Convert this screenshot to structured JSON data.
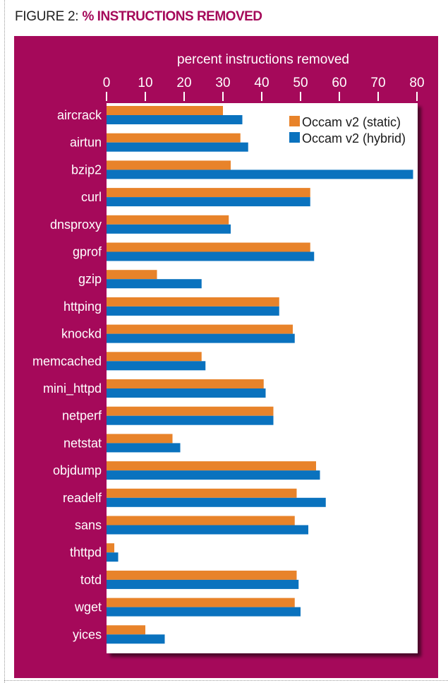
{
  "figure": {
    "label": "FIGURE 2:",
    "title": "% INSTRUCTIONS REMOVED"
  },
  "colors": {
    "panel": "#a5095a",
    "static": "#e8832a",
    "hybrid": "#0a72be"
  },
  "chart_data": {
    "type": "bar",
    "orientation": "horizontal",
    "xlabel": "percent instructions removed",
    "xlim": [
      0,
      80
    ],
    "xticks": [
      0,
      10,
      20,
      30,
      40,
      50,
      60,
      70,
      80
    ],
    "legend_position": "top-right",
    "grid": false,
    "categories": [
      "aircrack",
      "airtun",
      "bzip2",
      "curl",
      "dnsproxy",
      "gprof",
      "gzip",
      "httping",
      "knockd",
      "memcached",
      "mini_httpd",
      "netperf",
      "netstat",
      "objdump",
      "readelf",
      "sans",
      "thttpd",
      "totd",
      "wget",
      "yices"
    ],
    "series": [
      {
        "name": "Occam v2 (static)",
        "color": "#e8832a",
        "values": [
          30,
          34.5,
          32,
          52.5,
          31.5,
          52.5,
          13,
          44.5,
          48,
          24.5,
          40.5,
          43,
          17,
          54,
          49,
          48.5,
          2,
          49,
          48.5,
          10
        ]
      },
      {
        "name": "Occam v2 (hybrid)",
        "color": "#0a72be",
        "values": [
          35,
          36.5,
          79,
          52.5,
          32,
          53.5,
          24.5,
          44.5,
          48.5,
          25.5,
          41,
          43,
          19,
          55,
          56.5,
          52,
          3,
          49.5,
          50,
          15
        ]
      }
    ]
  }
}
